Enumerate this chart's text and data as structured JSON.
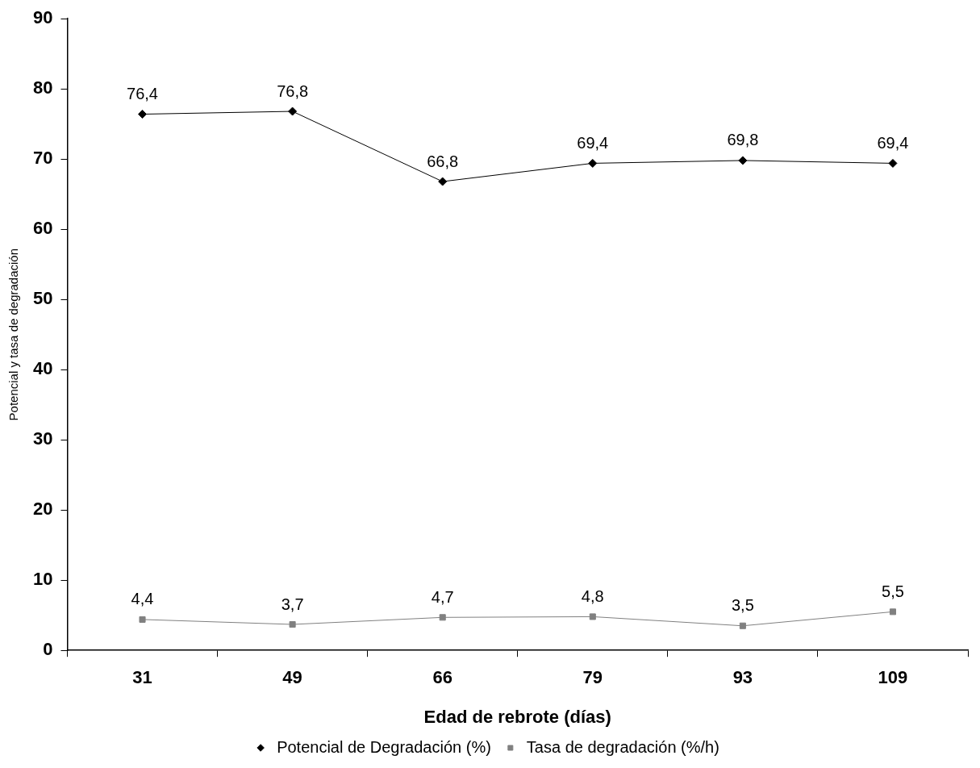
{
  "chart_data": {
    "type": "line",
    "xlabel": "Edad de rebrote (días)",
    "ylabel": "Potencial y tasa de degradación",
    "categories": [
      "31",
      "49",
      "66",
      "79",
      "93",
      "109"
    ],
    "series": [
      {
        "name": "Potencial de Degradación (%)",
        "color": "#000000",
        "marker": "diamond",
        "values": [
          76.4,
          76.8,
          66.8,
          69.4,
          69.8,
          69.4
        ],
        "value_labels": [
          "76,4",
          "76,8",
          "66,8",
          "69,4",
          "69,8",
          "69,4"
        ]
      },
      {
        "name": "Tasa de degradación (%/h)",
        "color": "#808080",
        "marker": "square",
        "values": [
          4.4,
          3.7,
          4.7,
          4.8,
          3.5,
          5.5
        ],
        "value_labels": [
          "4,4",
          "3,7",
          "4,7",
          "4,8",
          "3,5",
          "5,5"
        ]
      }
    ],
    "ylim": [
      0,
      90
    ],
    "yticks": [
      0,
      10,
      20,
      30,
      40,
      50,
      60,
      70,
      80,
      90
    ],
    "grid": false,
    "legend": "bottom",
    "line_style": "solid"
  }
}
